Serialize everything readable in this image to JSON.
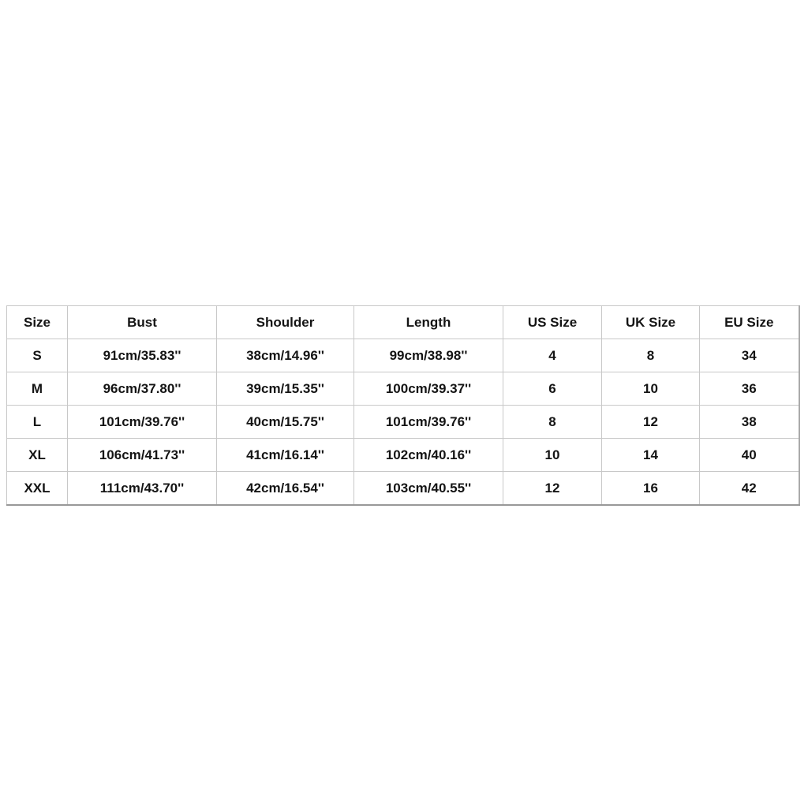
{
  "size_chart": {
    "headers": [
      "Size",
      "Bust",
      "Shoulder",
      "Length",
      "US Size",
      "UK Size",
      "EU Size"
    ],
    "rows": [
      [
        "S",
        "91cm/35.83''",
        "38cm/14.96''",
        "99cm/38.98''",
        "4",
        "8",
        "34"
      ],
      [
        "M",
        "96cm/37.80''",
        "39cm/15.35''",
        "100cm/39.37''",
        "6",
        "10",
        "36"
      ],
      [
        "L",
        "101cm/39.76''",
        "40cm/15.75''",
        "101cm/39.76''",
        "8",
        "12",
        "38"
      ],
      [
        "XL",
        "106cm/41.73''",
        "41cm/16.14''",
        "102cm/40.16''",
        "10",
        "14",
        "40"
      ],
      [
        "XXL",
        "111cm/43.70''",
        "42cm/16.54''",
        "103cm/40.55''",
        "12",
        "16",
        "42"
      ]
    ]
  }
}
